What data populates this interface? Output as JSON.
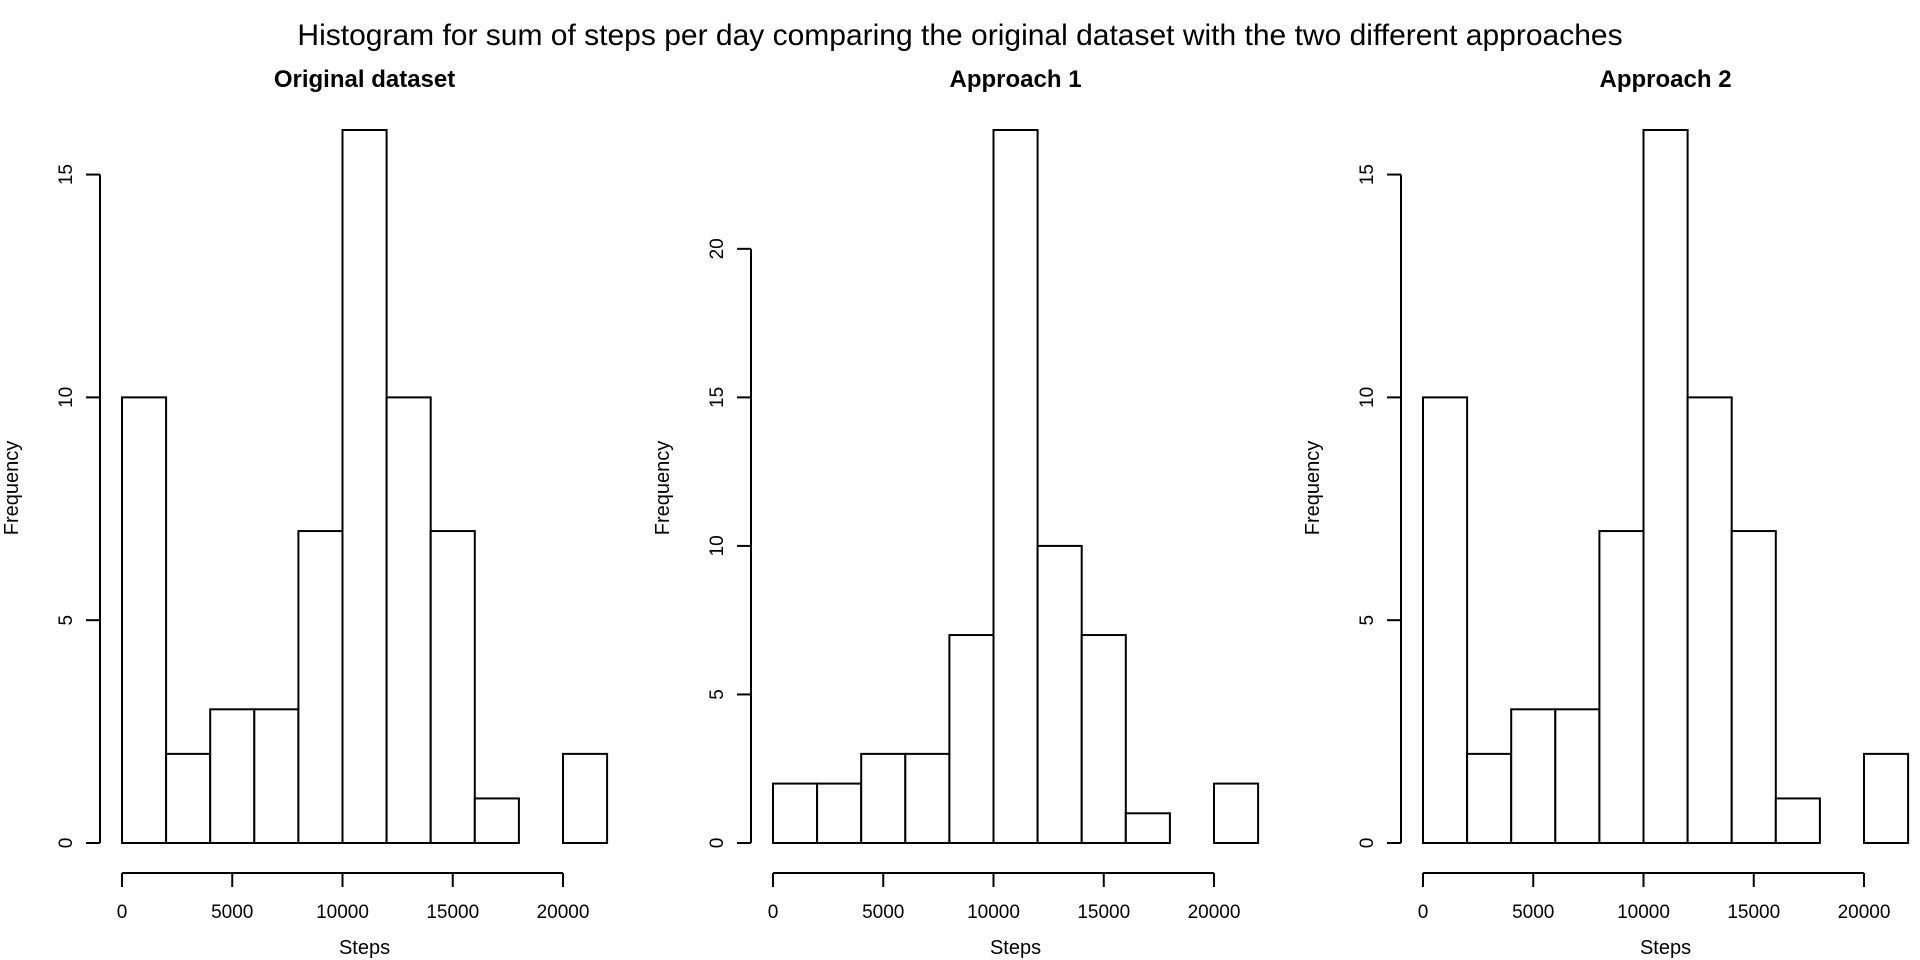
{
  "figure": {
    "title": "Histogram for sum of steps per day comparing the original dataset with the two different approaches"
  },
  "colors": {
    "bar_fill": "#ffffff",
    "bar_stroke": "#000000",
    "axis": "#000000"
  },
  "chart_data": [
    {
      "type": "bar",
      "title": "Original dataset",
      "xlabel": "Steps",
      "ylabel": "Frequency",
      "bin_edges": [
        0,
        2000,
        4000,
        6000,
        8000,
        10000,
        12000,
        14000,
        16000,
        18000,
        20000,
        22000
      ],
      "values": [
        10,
        2,
        3,
        3,
        7,
        16,
        10,
        7,
        1,
        0,
        2
      ],
      "xticks": [
        0,
        5000,
        10000,
        15000,
        20000
      ],
      "yticks": [
        0,
        5,
        10,
        15
      ],
      "ylim": [
        0,
        16
      ],
      "grid": false
    },
    {
      "type": "bar",
      "title": "Approach 1",
      "xlabel": "Steps",
      "ylabel": "Frequency",
      "bin_edges": [
        0,
        2000,
        4000,
        6000,
        8000,
        10000,
        12000,
        14000,
        16000,
        18000,
        20000,
        22000
      ],
      "values": [
        2,
        2,
        3,
        3,
        7,
        24,
        10,
        7,
        1,
        0,
        2
      ],
      "xticks": [
        0,
        5000,
        10000,
        15000,
        20000
      ],
      "yticks": [
        0,
        5,
        10,
        15,
        20
      ],
      "ylim": [
        0,
        24
      ],
      "grid": false
    },
    {
      "type": "bar",
      "title": "Approach 2",
      "xlabel": "Steps",
      "ylabel": "Frequency",
      "bin_edges": [
        0,
        2000,
        4000,
        6000,
        8000,
        10000,
        12000,
        14000,
        16000,
        18000,
        20000,
        22000
      ],
      "values": [
        10,
        2,
        3,
        3,
        7,
        16,
        10,
        7,
        1,
        0,
        2
      ],
      "xticks": [
        0,
        5000,
        10000,
        15000,
        20000
      ],
      "yticks": [
        0,
        5,
        10,
        15
      ],
      "ylim": [
        0,
        16
      ],
      "grid": false
    }
  ]
}
